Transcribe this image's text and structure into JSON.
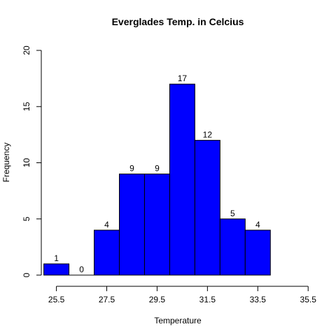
{
  "chart_data": {
    "type": "bar",
    "title": "Everglades Temp. in Celcius",
    "xlabel": "Temperature",
    "ylabel": "Frequency",
    "bin_edges": [
      25,
      26,
      27,
      28,
      29,
      30,
      31,
      32,
      33,
      34
    ],
    "values": [
      1,
      0,
      4,
      9,
      9,
      17,
      12,
      5,
      4
    ],
    "xlim": [
      25.5,
      35.5
    ],
    "ylim": [
      0,
      20
    ],
    "xticks": [
      "25.5",
      "27.5",
      "29.5",
      "31.5",
      "33.5",
      "35.5"
    ],
    "yticks": [
      "0",
      "5",
      "10",
      "15",
      "20"
    ],
    "bar_color": "#0000ff",
    "bar_edge_color": "#000000",
    "grid": false,
    "data_labels": true
  }
}
